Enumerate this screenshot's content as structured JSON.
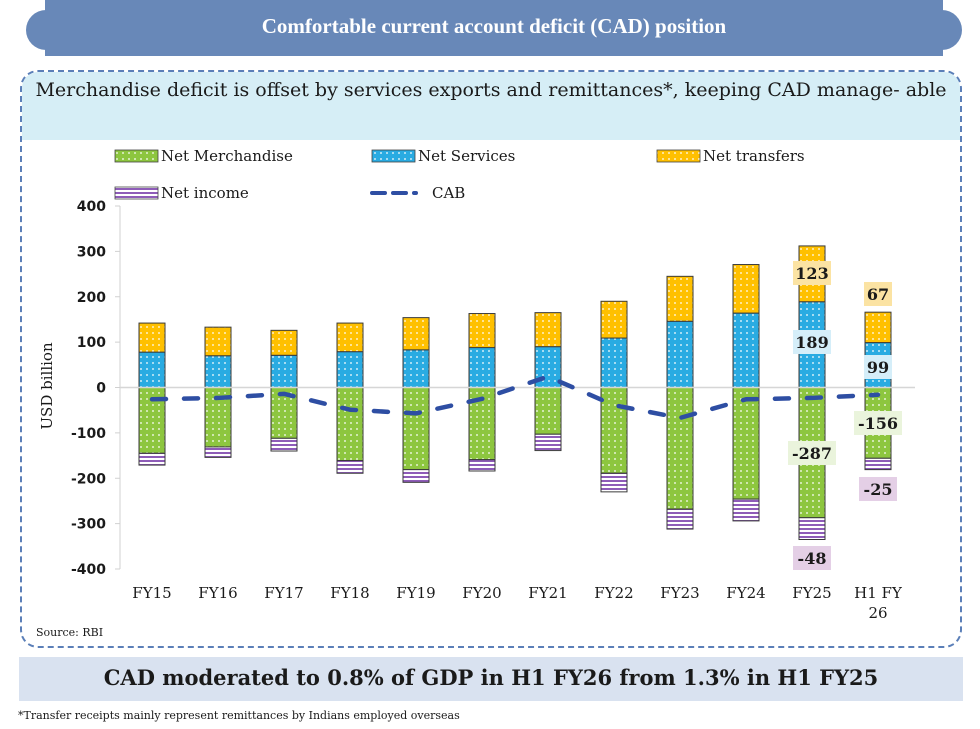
{
  "header": {
    "title": "Comfortable current account deficit (CAD) position"
  },
  "subtitle": "Merchandise deficit is offset by services exports and remittances*, keeping CAD manage- able",
  "source": "Source: RBI",
  "summary": "CAD moderated to 0.8% of GDP in H1 FY26 from 1.3% in H1 FY25",
  "footnote": "*Transfer receipts mainly represent remittances by Indians employed overseas",
  "colors": {
    "net_merchandise": "#8dc63f",
    "net_services": "#29abe2",
    "net_transfers": "#ffc000",
    "net_income": "#8e5cb8",
    "cab": "#2e4ea3",
    "banner": "#6888b8"
  },
  "chart_data": {
    "type": "bar",
    "stacked": true,
    "title": "Merchandise deficit is offset by services exports and remittances*, keeping CAD manageable",
    "xlabel": "",
    "ylabel": "USD billion",
    "ylim": [
      -400,
      400
    ],
    "yticks": [
      400,
      300,
      200,
      100,
      0,
      -100,
      -200,
      -300,
      -400
    ],
    "grid": false,
    "legend_position": "top",
    "categories": [
      "FY15",
      "FY16",
      "FY17",
      "FY18",
      "FY19",
      "FY20",
      "FY21",
      "FY22",
      "FY23",
      "FY24",
      "FY25",
      "H1 FY 26"
    ],
    "series": [
      {
        "name": "Net Merchandise",
        "kind": "bar",
        "values": [
          -145,
          -131,
          -112,
          -161,
          -181,
          -159,
          -103,
          -189,
          -268,
          -246,
          -287,
          -156
        ]
      },
      {
        "name": "Net Services",
        "kind": "bar",
        "values": [
          78,
          70,
          71,
          79,
          83,
          88,
          90,
          109,
          146,
          164,
          189,
          99
        ]
      },
      {
        "name": "Net transfers",
        "kind": "bar",
        "values": [
          64,
          63,
          55,
          63,
          71,
          75,
          75,
          81,
          99,
          107,
          123,
          67
        ]
      },
      {
        "name": "Net income",
        "kind": "bar",
        "values": [
          -26,
          -23,
          -28,
          -28,
          -28,
          -25,
          -36,
          -41,
          -44,
          -48,
          -48,
          -25
        ]
      },
      {
        "name": "CAB",
        "kind": "line",
        "style": "dashed",
        "values": [
          -26,
          -23,
          -14,
          -49,
          -57,
          -25,
          24,
          -39,
          -67,
          -26,
          -23,
          -16
        ]
      }
    ],
    "data_labels": [
      {
        "category": "FY25",
        "series": "Net transfers",
        "text": "123"
      },
      {
        "category": "FY25",
        "series": "Net Services",
        "text": "189"
      },
      {
        "category": "FY25",
        "series": "Net Merchandise",
        "text": "-287"
      },
      {
        "category": "FY25",
        "series": "Net income",
        "text": "-48"
      },
      {
        "category": "H1 FY 26",
        "series": "Net transfers",
        "text": "67"
      },
      {
        "category": "H1 FY 26",
        "series": "Net Services",
        "text": "99"
      },
      {
        "category": "H1 FY 26",
        "series": "Net Merchandise",
        "text": "-156"
      },
      {
        "category": "H1 FY 26",
        "series": "Net income",
        "text": "-25"
      }
    ],
    "legend": [
      {
        "name": "Net Merchandise",
        "swatch": "dotted-green"
      },
      {
        "name": "Net Services",
        "swatch": "dotted-blue"
      },
      {
        "name": "Net transfers",
        "swatch": "dotted-yellow"
      },
      {
        "name": "Net income",
        "swatch": "striped-purple"
      },
      {
        "name": "CAB",
        "swatch": "dashed-line"
      }
    ]
  }
}
